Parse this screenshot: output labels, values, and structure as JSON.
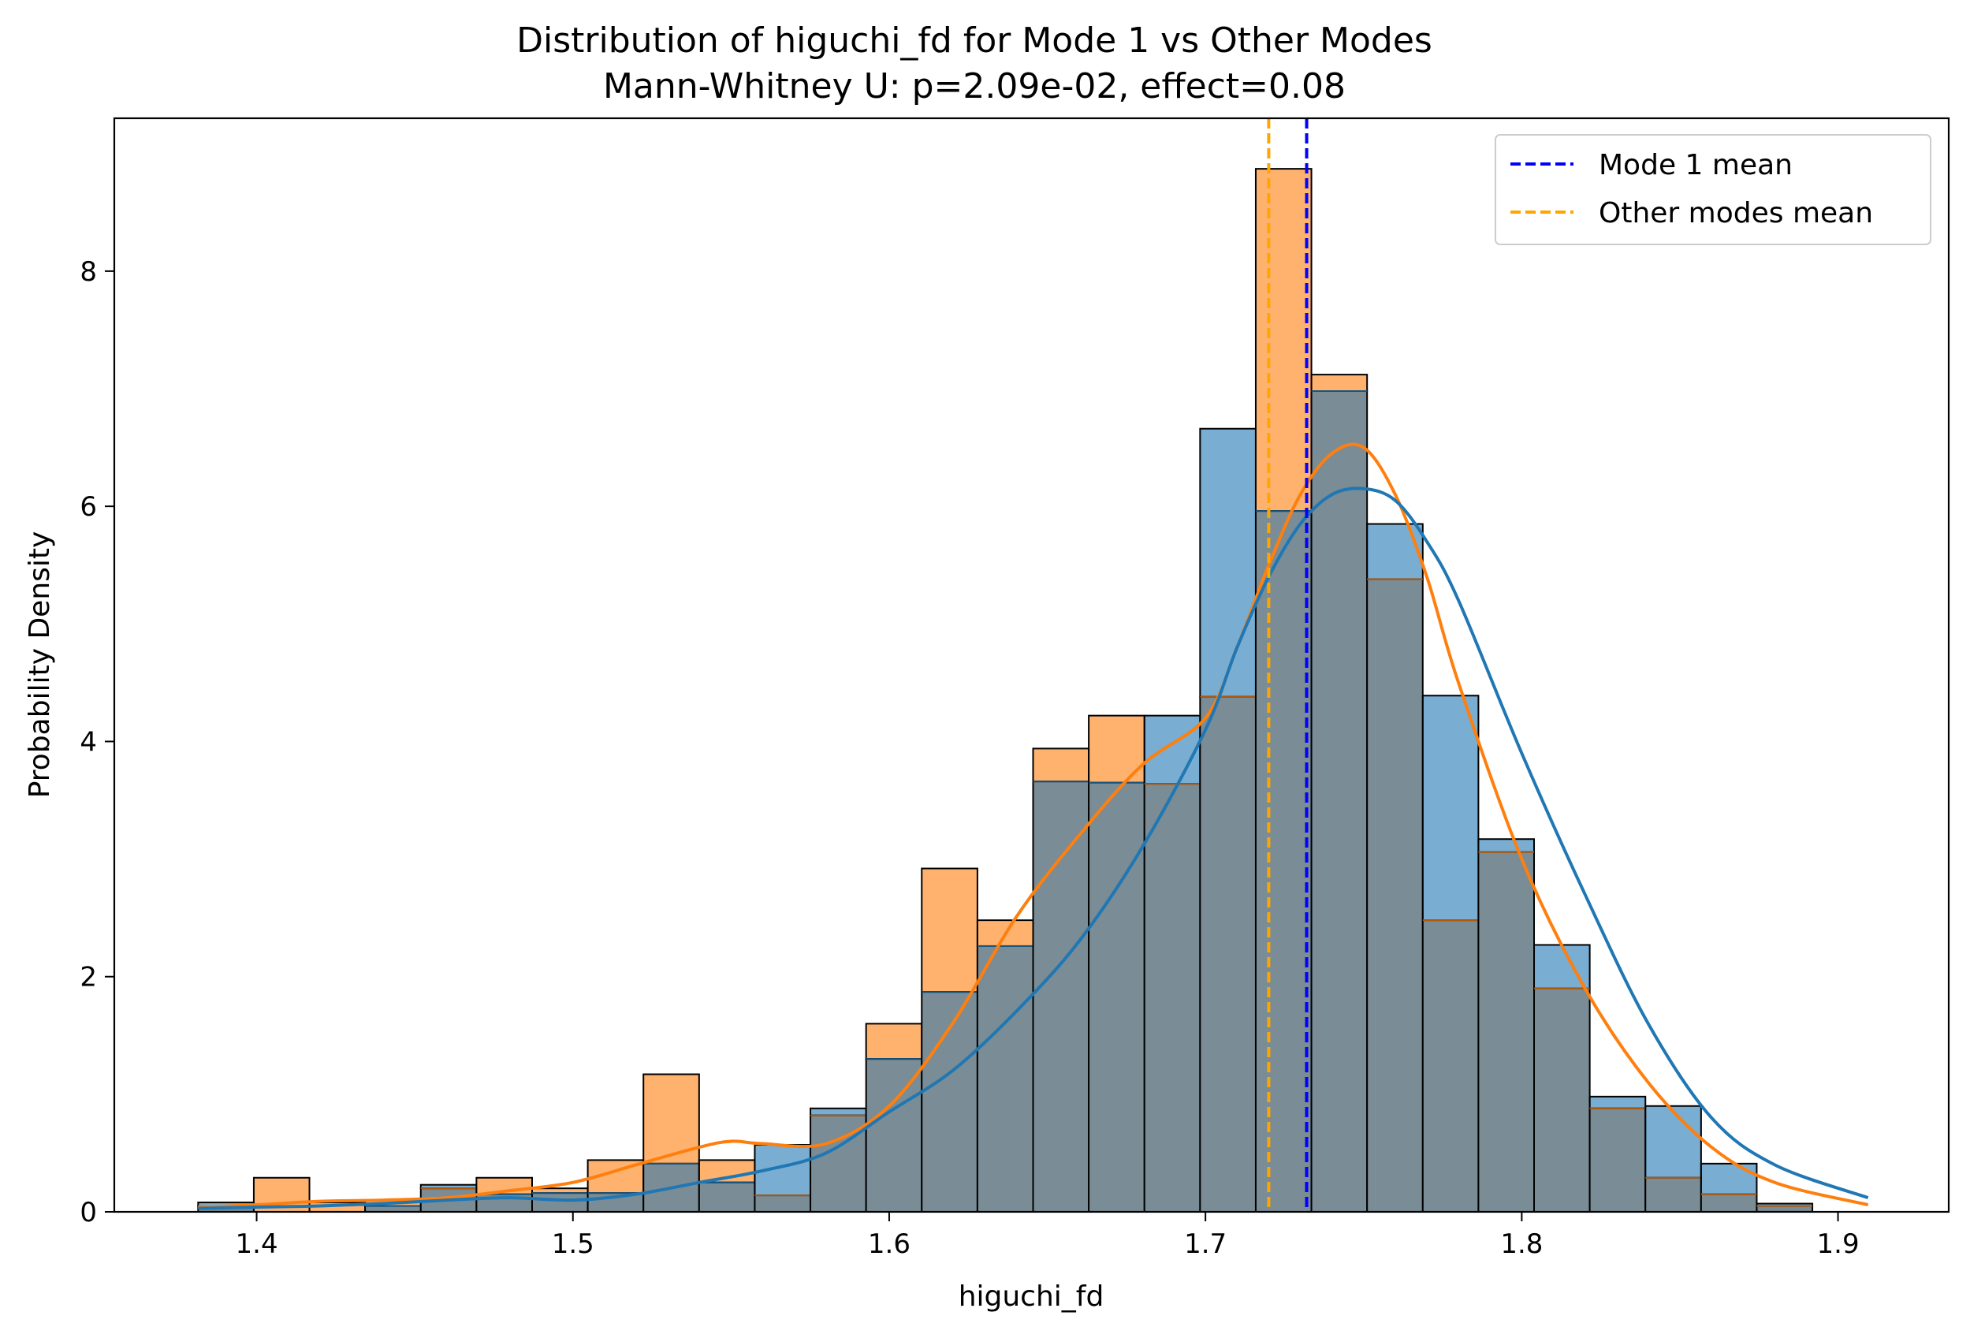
{
  "chart_data": {
    "type": "bar",
    "subtype": "overlaid-histogram-with-kde",
    "title": "Distribution of higuchi_fd for Mode 1 vs Other Modes",
    "subtitle": "Mann-Whitney U: p=2.09e-02, effect=0.08",
    "xlabel": "higuchi_fd",
    "ylabel": "Probability Density",
    "xlim": [
      1.355,
      1.935
    ],
    "ylim": [
      0,
      9.3
    ],
    "xticks": [
      1.4,
      1.5,
      1.6,
      1.7,
      1.8,
      1.9
    ],
    "yticks": [
      0,
      2,
      4,
      6,
      8
    ],
    "xtick_labels": [
      "1.4",
      "1.5",
      "1.6",
      "1.7",
      "1.8",
      "1.9"
    ],
    "ytick_labels": [
      "0",
      "2",
      "4",
      "6",
      "8"
    ],
    "bin_edges": [
      1.3815,
      1.3991,
      1.4167,
      1.4343,
      1.4519,
      1.4695,
      1.4871,
      1.5047,
      1.5223,
      1.5399,
      1.5575,
      1.5751,
      1.5927,
      1.6103,
      1.6279,
      1.6455,
      1.6631,
      1.6807,
      1.6983,
      1.7159,
      1.7335,
      1.7511,
      1.7687,
      1.7863,
      1.8039,
      1.8215,
      1.8391,
      1.8567,
      1.8743,
      1.8919,
      1.9095
    ],
    "grid": false,
    "legend_position": "top-right",
    "series": [
      {
        "name": "Mode 1",
        "color": "#1f77b4",
        "values": [
          0.08,
          0.0,
          0.0,
          0.05,
          0.23,
          0.15,
          0.16,
          0.16,
          0.41,
          0.25,
          0.57,
          0.88,
          1.3,
          1.87,
          2.26,
          3.66,
          3.65,
          4.22,
          6.66,
          5.96,
          6.98,
          5.85,
          4.39,
          3.17,
          2.27,
          0.98,
          0.9,
          0.41,
          0.07,
          0.0
        ]
      },
      {
        "name": "Other modes",
        "color": "#ff7f0e",
        "values": [
          0.05,
          0.29,
          0.08,
          0.1,
          0.2,
          0.29,
          0.2,
          0.44,
          1.17,
          0.44,
          0.14,
          0.82,
          1.6,
          2.92,
          2.48,
          3.94,
          4.22,
          3.64,
          4.38,
          8.87,
          7.12,
          5.38,
          2.48,
          3.06,
          1.9,
          0.88,
          0.29,
          0.15,
          0.05,
          0.0
        ]
      }
    ],
    "kde": [
      {
        "series": "Mode 1",
        "color": "#1f77b4",
        "x": [
          1.3815,
          1.4,
          1.42,
          1.44,
          1.46,
          1.48,
          1.5,
          1.52,
          1.54,
          1.56,
          1.58,
          1.6,
          1.62,
          1.64,
          1.66,
          1.68,
          1.7,
          1.71,
          1.72,
          1.73,
          1.74,
          1.75,
          1.76,
          1.77,
          1.78,
          1.8,
          1.82,
          1.84,
          1.86,
          1.88,
          1.9095
        ],
        "y": [
          0.03,
          0.04,
          0.05,
          0.07,
          0.1,
          0.12,
          0.1,
          0.15,
          0.25,
          0.35,
          0.5,
          0.85,
          1.2,
          1.7,
          2.3,
          3.1,
          4.1,
          4.8,
          5.4,
          5.85,
          6.1,
          6.15,
          6.05,
          5.7,
          5.2,
          3.9,
          2.7,
          1.6,
          0.8,
          0.4,
          0.12
        ]
      },
      {
        "series": "Other modes",
        "color": "#ff7f0e",
        "x": [
          1.3815,
          1.4,
          1.42,
          1.44,
          1.46,
          1.48,
          1.5,
          1.52,
          1.54,
          1.55,
          1.56,
          1.58,
          1.6,
          1.62,
          1.64,
          1.66,
          1.68,
          1.7,
          1.71,
          1.72,
          1.73,
          1.74,
          1.75,
          1.76,
          1.77,
          1.78,
          1.8,
          1.82,
          1.84,
          1.86,
          1.88,
          1.9095
        ],
        "y": [
          0.04,
          0.06,
          0.09,
          0.1,
          0.12,
          0.18,
          0.25,
          0.4,
          0.55,
          0.6,
          0.58,
          0.58,
          0.9,
          1.6,
          2.5,
          3.2,
          3.8,
          4.2,
          4.8,
          5.5,
          6.1,
          6.45,
          6.5,
          6.1,
          5.4,
          4.5,
          3.0,
          1.9,
          1.1,
          0.55,
          0.25,
          0.06
        ]
      }
    ],
    "reference_lines": [
      {
        "label": "Mode 1 mean",
        "x": 1.732,
        "color": "#0000ff",
        "style": "dashed"
      },
      {
        "label": "Other modes mean",
        "x": 1.72,
        "color": "#ffa500",
        "style": "dashed"
      }
    ],
    "overlap_color": "#7a8c95",
    "legend": [
      {
        "label": "Mode 1 mean",
        "color": "#0000ff"
      },
      {
        "label": "Other modes mean",
        "color": "#ffa500"
      }
    ]
  }
}
